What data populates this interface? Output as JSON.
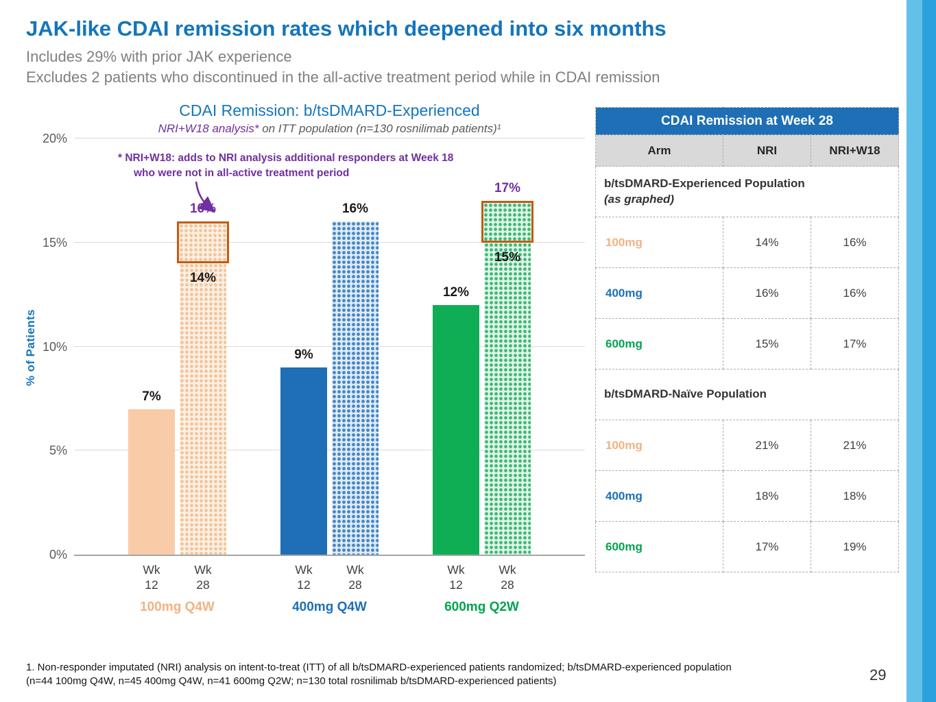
{
  "slide": {
    "title": "JAK-like CDAI remission rates which deepened into six months",
    "subtitle1": "Includes 29% with prior JAK experience",
    "subtitle2": "Excludes 2 patients who discontinued in the all-active treatment period while in CDAI remission",
    "footnote_line1": "1. Non-responder imputated (NRI) analysis on intent-to-treat (ITT) of all b/tsDMARD-experienced patients randomized; b/tsDMARD-experienced population",
    "footnote_line2": "(n=44 100mg Q4W, n=45 400mg Q4W, n=41 600mg Q2W; n=130 total rosnilimab b/tsDMARD-experienced patients)",
    "page_number": "29"
  },
  "colors": {
    "accent_blue": "#1475BC",
    "purple_annotation": "#7030A0",
    "nri_box_outline": "#C55A11",
    "peach": "#F4B183",
    "blue": "#1E6FB5",
    "green": "#00A550",
    "table_header_bg": "#1E6FB5",
    "column_header_bg": "#D9D9D9",
    "edge_stripe_light": "#63C0E8",
    "edge_stripe_dark": "#2BA2DB"
  },
  "chart_data": {
    "type": "bar",
    "title": "CDAI Remission: b/tsDMARD-Experienced",
    "subtitle_em": "NRI+W18 analysis*",
    "subtitle_rest": " on ITT population (n=130 rosnilimab patients)¹",
    "annotation_line1": "* NRI+W18: adds to NRI analysis additional responders at Week 18",
    "annotation_line2": "who were not in all-active treatment period",
    "ylabel": "% of Patients",
    "unit": "%",
    "ylim": [
      0,
      20
    ],
    "ytick_step": 5,
    "yticks": [
      "0%",
      "5%",
      "10%",
      "15%",
      "20%"
    ],
    "grid": "horizontal",
    "groups": [
      {
        "label": "100mg Q4W",
        "label_color": "#F4B183",
        "solid_color": "#F9CBA7",
        "pattern_bg": "#FCF0E3",
        "pattern_dot": "#F2C49C",
        "bars": [
          {
            "tick": "Wk\n12",
            "value": 7,
            "label": "7%",
            "fill": "solid"
          },
          {
            "tick": "Wk\n28",
            "value": 14,
            "label": "14%",
            "fill": "pattern",
            "nri_w18": {
              "value": 16,
              "label": "16%"
            }
          }
        ]
      },
      {
        "label": "400mg Q4W",
        "label_color": "#1E6FB5",
        "solid_color": "#1E6FB5",
        "pattern_bg": "#DEEAF6",
        "pattern_dot": "#4586C3",
        "bars": [
          {
            "tick": "Wk\n12",
            "value": 9,
            "label": "9%",
            "fill": "solid"
          },
          {
            "tick": "Wk\n28",
            "value": 16,
            "label": "16%",
            "fill": "pattern"
          }
        ]
      },
      {
        "label": "600mg Q2W",
        "label_color": "#00A550",
        "solid_color": "#0FAE54",
        "pattern_bg": "#E1F4E9",
        "pattern_dot": "#3DBA74",
        "bars": [
          {
            "tick": "Wk\n12",
            "value": 12,
            "label": "12%",
            "fill": "solid"
          },
          {
            "tick": "Wk\n28",
            "value": 15,
            "label": "15%",
            "fill": "pattern",
            "nri_w18": {
              "value": 17,
              "label": "17%"
            }
          }
        ]
      }
    ]
  },
  "table": {
    "title": "CDAI Remission at Week 28",
    "columns": [
      "Arm",
      "NRI",
      "NRI+W18"
    ],
    "sections": [
      {
        "heading": "b/tsDMARD-Experienced Population",
        "heading_note": "(as graphed)",
        "rows": [
          {
            "arm": "100mg",
            "arm_color": "#F4B183",
            "nri": "14%",
            "nri_w18": "16%"
          },
          {
            "arm": "400mg",
            "arm_color": "#1E6FB5",
            "nri": "16%",
            "nri_w18": "16%"
          },
          {
            "arm": "600mg",
            "arm_color": "#00A550",
            "nri": "15%",
            "nri_w18": "17%"
          }
        ]
      },
      {
        "heading": "b/tsDMARD-Naïve Population",
        "heading_note": "",
        "rows": [
          {
            "arm": "100mg",
            "arm_color": "#F4B183",
            "nri": "21%",
            "nri_w18": "21%"
          },
          {
            "arm": "400mg",
            "arm_color": "#1E6FB5",
            "nri": "18%",
            "nri_w18": "18%"
          },
          {
            "arm": "600mg",
            "arm_color": "#00A550",
            "nri": "17%",
            "nri_w18": "19%"
          }
        ]
      }
    ]
  }
}
